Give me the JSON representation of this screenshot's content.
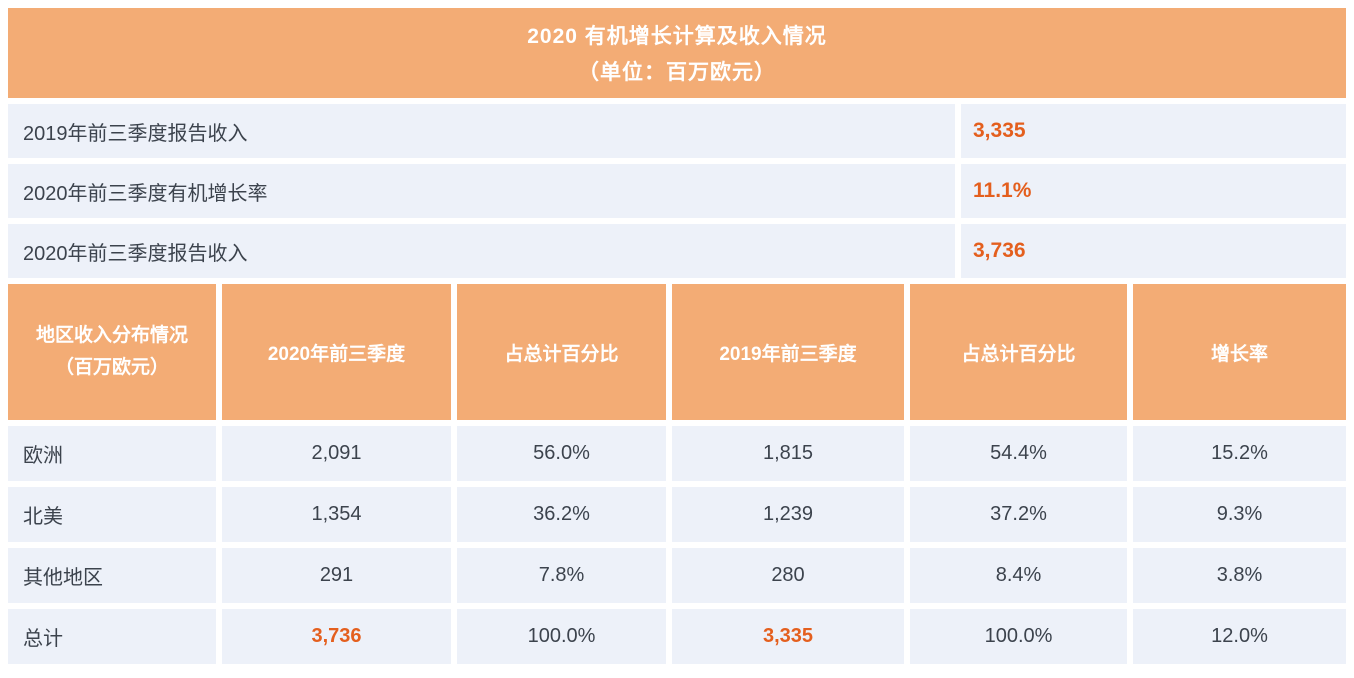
{
  "title": {
    "line1": "2020 有机增长计算及收入情况",
    "line2": "（单位：百万欧元）"
  },
  "summary_rows": [
    {
      "label": "2019年前三季度报告收入",
      "value": "3,335"
    },
    {
      "label": "2020年前三季度有机增长率",
      "value": "11.1%"
    },
    {
      "label": "2020年前三季度报告收入",
      "value": "3,736"
    }
  ],
  "region_table": {
    "header": {
      "col1_title": "地区收入分布情况",
      "col1_unit": "（百万欧元）",
      "col2": "2020年前三季度",
      "col3": "占总计百分比",
      "col4": "2019年前三季度",
      "col5": "占总计百分比",
      "col6": "增长率"
    },
    "rows": [
      {
        "region": "欧洲",
        "cells": [
          "2,091",
          "56.0%",
          "1,815",
          "54.4%",
          "15.2%"
        ]
      },
      {
        "region": "北美",
        "cells": [
          "1,354",
          "36.2%",
          "1,239",
          "37.2%",
          "9.3%"
        ]
      },
      {
        "region": "其他地区",
        "cells": [
          "291",
          "7.8%",
          "280",
          "8.4%",
          "3.8%"
        ]
      },
      {
        "region": "总计",
        "cells": [
          "3,736",
          "100.0%",
          "3,335",
          "100.0%",
          "12.0%"
        ]
      }
    ]
  },
  "chart_data": {
    "type": "table",
    "title": "2020 有机增长计算及收入情况（单位：百万欧元）",
    "summary": {
      "revenue_2019_q1_q3": 3335,
      "organic_growth_2020_q1_q3_pct": 11.1,
      "revenue_2020_q1_q3": 3736
    },
    "columns": [
      "地区收入分布情况（百万欧元）",
      "2020年前三季度",
      "占总计百分比",
      "2019年前三季度",
      "占总计百分比",
      "增长率"
    ],
    "rows": [
      [
        "欧洲",
        2091,
        "56.0%",
        1815,
        "54.4%",
        "15.2%"
      ],
      [
        "北美",
        1354,
        "36.2%",
        1239,
        "37.2%",
        "9.3%"
      ],
      [
        "其他地区",
        291,
        "7.8%",
        280,
        "8.4%",
        "3.8%"
      ],
      [
        "总计",
        3736,
        "100.0%",
        3335,
        "100.0%",
        "12.0%"
      ]
    ]
  },
  "colors": {
    "header_orange": "#F3AC75",
    "value_orange": "#E45F1E",
    "cell_bg": "#EDF1F9",
    "text_dark": "#3C434D"
  }
}
